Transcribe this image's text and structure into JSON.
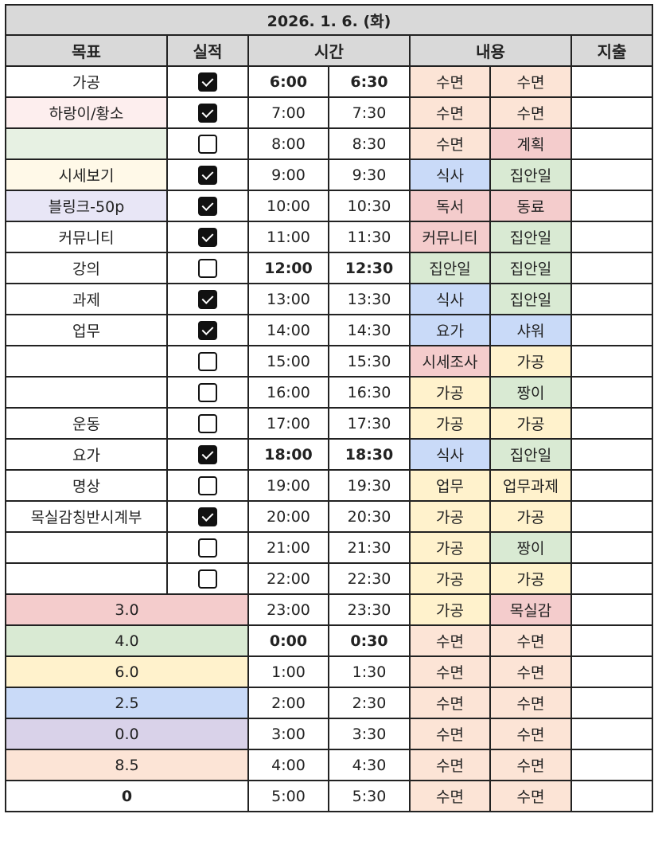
{
  "title": "2026. 1. 6. (화)",
  "headers": {
    "goal": "목표",
    "done": "실적",
    "time": "시간",
    "content": "내용",
    "expense": "지출"
  },
  "colors": {
    "orange": "#fce4d6",
    "red": "#f4cccc",
    "blue": "#c9daf8",
    "green": "#d9ead3",
    "yellow": "#fff2cc",
    "purple": "#d9d2e9",
    "pink_light": "#fdeeee",
    "green_light": "#e7f1e3",
    "yellow_light": "#fff9e8",
    "purple_light": "#e8e6f6",
    "white": "#ffffff"
  },
  "goals": [
    {
      "label": "가공",
      "checked": true,
      "color": "white"
    },
    {
      "label": "하랑이/황소",
      "checked": true,
      "color": "pink_light"
    },
    {
      "label": "",
      "checked": false,
      "color": "green_light"
    },
    {
      "label": "시세보기",
      "checked": true,
      "color": "yellow_light"
    },
    {
      "label": "블링크-50p",
      "checked": true,
      "color": "purple_light"
    },
    {
      "label": "커뮤니티",
      "checked": true,
      "color": "white"
    },
    {
      "label": "강의",
      "checked": false,
      "color": "white"
    },
    {
      "label": "과제",
      "checked": true,
      "color": "white"
    },
    {
      "label": "업무",
      "checked": true,
      "color": "white"
    },
    {
      "label": "",
      "checked": false,
      "color": "white"
    },
    {
      "label": "",
      "checked": false,
      "color": "white"
    },
    {
      "label": "운동",
      "checked": false,
      "color": "white"
    },
    {
      "label": "요가",
      "checked": true,
      "color": "white"
    },
    {
      "label": "명상",
      "checked": false,
      "color": "white"
    },
    {
      "label": "목실감칭반시계부",
      "checked": true,
      "color": "white"
    },
    {
      "label": "",
      "checked": false,
      "color": "white"
    },
    {
      "label": "",
      "checked": false,
      "color": "white"
    }
  ],
  "summary": [
    {
      "value": "3.0",
      "color": "red"
    },
    {
      "value": "4.0",
      "color": "green"
    },
    {
      "value": "6.0",
      "color": "yellow"
    },
    {
      "value": "2.5",
      "color": "blue"
    },
    {
      "value": "0.0",
      "color": "purple"
    },
    {
      "value": "8.5",
      "color": "orange"
    },
    {
      "value": "0",
      "color": "white",
      "bold": true
    }
  ],
  "schedule": [
    {
      "t1": "6:00",
      "t2": "6:30",
      "bold": true,
      "c1": "수면",
      "k1": "orange",
      "c2": "수면",
      "k2": "orange"
    },
    {
      "t1": "7:00",
      "t2": "7:30",
      "c1": "수면",
      "k1": "orange",
      "c2": "수면",
      "k2": "orange"
    },
    {
      "t1": "8:00",
      "t2": "8:30",
      "c1": "수면",
      "k1": "orange",
      "c2": "계획",
      "k2": "red"
    },
    {
      "t1": "9:00",
      "t2": "9:30",
      "c1": "식사",
      "k1": "blue",
      "c2": "집안일",
      "k2": "green"
    },
    {
      "t1": "10:00",
      "t2": "10:30",
      "c1": "독서",
      "k1": "red",
      "c2": "동료",
      "k2": "red"
    },
    {
      "t1": "11:00",
      "t2": "11:30",
      "c1": "커뮤니티",
      "k1": "red",
      "c2": "집안일",
      "k2": "green"
    },
    {
      "t1": "12:00",
      "t2": "12:30",
      "bold": true,
      "c1": "집안일",
      "k1": "green",
      "c2": "집안일",
      "k2": "green"
    },
    {
      "t1": "13:00",
      "t2": "13:30",
      "c1": "식사",
      "k1": "blue",
      "c2": "집안일",
      "k2": "green"
    },
    {
      "t1": "14:00",
      "t2": "14:30",
      "c1": "요가",
      "k1": "blue",
      "c2": "샤워",
      "k2": "blue"
    },
    {
      "t1": "15:00",
      "t2": "15:30",
      "c1": "시세조사",
      "k1": "red",
      "c2": "가공",
      "k2": "yellow"
    },
    {
      "t1": "16:00",
      "t2": "16:30",
      "c1": "가공",
      "k1": "yellow",
      "c2": "짱이",
      "k2": "green"
    },
    {
      "t1": "17:00",
      "t2": "17:30",
      "c1": "가공",
      "k1": "yellow",
      "c2": "가공",
      "k2": "yellow"
    },
    {
      "t1": "18:00",
      "t2": "18:30",
      "bold": true,
      "c1": "식사",
      "k1": "blue",
      "c2": "집안일",
      "k2": "green"
    },
    {
      "t1": "19:00",
      "t2": "19:30",
      "c1": "업무",
      "k1": "yellow",
      "c2": "업무과제",
      "k2": "yellow"
    },
    {
      "t1": "20:00",
      "t2": "20:30",
      "c1": "가공",
      "k1": "yellow",
      "c2": "가공",
      "k2": "yellow"
    },
    {
      "t1": "21:00",
      "t2": "21:30",
      "c1": "가공",
      "k1": "yellow",
      "c2": "짱이",
      "k2": "green"
    },
    {
      "t1": "22:00",
      "t2": "22:30",
      "c1": "가공",
      "k1": "yellow",
      "c2": "가공",
      "k2": "yellow"
    },
    {
      "t1": "23:00",
      "t2": "23:30",
      "c1": "가공",
      "k1": "yellow",
      "c2": "목실감",
      "k2": "red"
    },
    {
      "t1": "0:00",
      "t2": "0:30",
      "bold": true,
      "c1": "수면",
      "k1": "orange",
      "c2": "수면",
      "k2": "orange"
    },
    {
      "t1": "1:00",
      "t2": "1:30",
      "c1": "수면",
      "k1": "orange",
      "c2": "수면",
      "k2": "orange"
    },
    {
      "t1": "2:00",
      "t2": "2:30",
      "c1": "수면",
      "k1": "orange",
      "c2": "수면",
      "k2": "orange"
    },
    {
      "t1": "3:00",
      "t2": "3:30",
      "c1": "수면",
      "k1": "orange",
      "c2": "수면",
      "k2": "orange"
    },
    {
      "t1": "4:00",
      "t2": "4:30",
      "c1": "수면",
      "k1": "orange",
      "c2": "수면",
      "k2": "orange"
    },
    {
      "t1": "5:00",
      "t2": "5:30",
      "c1": "수면",
      "k1": "orange",
      "c2": "수면",
      "k2": "orange"
    }
  ]
}
